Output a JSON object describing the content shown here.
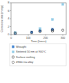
{
  "chart_data": {
    "type": "scatter",
    "x_label": "Time (hours)",
    "y_label": "Corrosion rate (mm/y)",
    "xlim": [
      0,
      320
    ],
    "xticks": [
      0,
      100,
      200,
      300
    ],
    "ylim": [
      0,
      8
    ],
    "yticks": [
      0,
      2,
      4,
      6,
      8
    ],
    "legend": "bottom",
    "series": [
      {
        "name": "Wrought",
        "color": "#3a7fd0",
        "marker": "square",
        "x": [
          24,
          120,
          168,
          240
        ],
        "values": [
          0.3,
          0.6,
          1.0,
          1.3
        ]
      },
      {
        "name": "Sintered 50 nm at 900°C",
        "color": "#8ecae6",
        "marker": "square",
        "x": [
          24,
          168,
          240,
          300
        ],
        "values": [
          0.5,
          1.5,
          3.8,
          7.6
        ]
      },
      {
        "name": "Surface melting",
        "color": "#222222",
        "marker": "circle",
        "x": [
          24,
          120,
          168,
          240,
          300
        ],
        "values": [
          0.2,
          0.5,
          0.8,
          0.9,
          1.1
        ]
      },
      {
        "name": "ZK60-Ca alloy",
        "color": "#222222",
        "marker": "diamond",
        "x": [
          24,
          168,
          240
        ],
        "values": [
          0.4,
          0.9,
          1.2
        ]
      }
    ]
  }
}
